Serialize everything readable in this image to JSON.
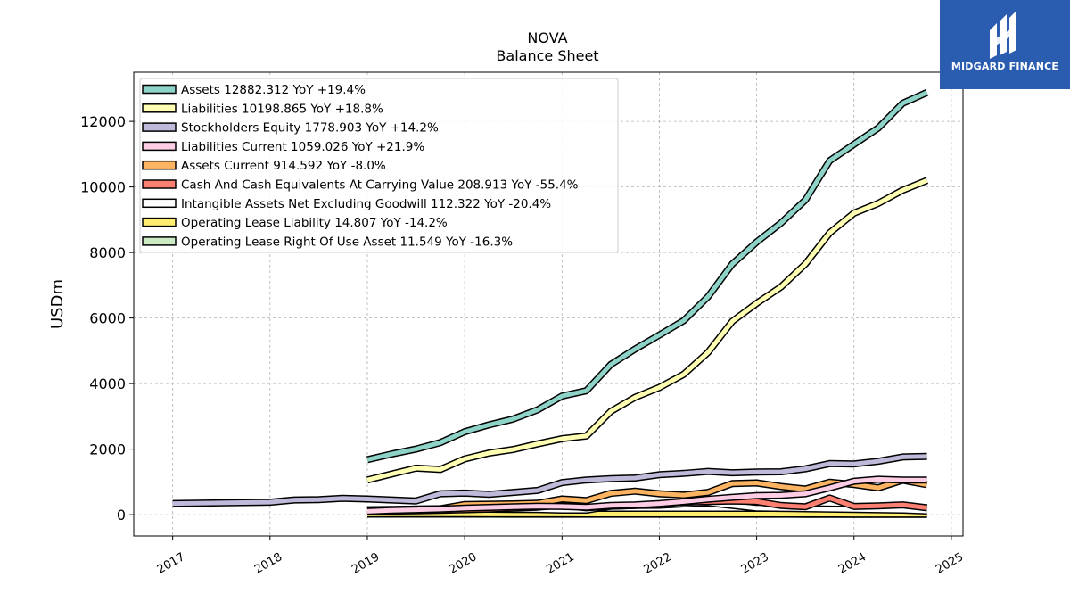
{
  "brand": {
    "name": "MIDGARD FINANCE",
    "logo_icon": "midgard-logo-icon",
    "color": "#2a5cb0"
  },
  "chart_data": {
    "type": "line",
    "title": "NOVA",
    "subtitle": "Balance  Sheet",
    "ylabel": "USDm",
    "xlabel": "",
    "xlim": [
      2016.6,
      2025.12
    ],
    "ylim": [
      -650,
      13500
    ],
    "yticks": [
      0,
      2000,
      4000,
      6000,
      8000,
      10000,
      12000
    ],
    "xticks": [
      2017,
      2018,
      2019,
      2020,
      2021,
      2022,
      2023,
      2024,
      2025
    ],
    "grid": true,
    "legend_position": "top-left",
    "series": [
      {
        "name": "Assets",
        "legend": "Assets  12882.312 YoY +19.4%",
        "color": "#8dd3c7",
        "x": [
          2019.0,
          2019.25,
          2019.5,
          2019.75,
          2020.0,
          2020.25,
          2020.5,
          2020.75,
          2021.0,
          2021.25,
          2021.5,
          2021.75,
          2022.0,
          2022.25,
          2022.5,
          2022.75,
          2023.0,
          2023.25,
          2023.5,
          2023.75,
          2024.0,
          2024.25,
          2024.5,
          2024.75
        ],
        "y": [
          1680,
          1850,
          2000,
          2200,
          2530,
          2740,
          2920,
          3200,
          3620,
          3780,
          4580,
          5050,
          5480,
          5920,
          6650,
          7650,
          8320,
          8900,
          9600,
          10800,
          11300,
          11800,
          12550,
          12882
        ]
      },
      {
        "name": "Liabilities",
        "legend": "Liabilities  10198.865 YoY +18.8%",
        "color": "#ffffb3",
        "x": [
          2019.0,
          2019.25,
          2019.5,
          2019.75,
          2020.0,
          2020.25,
          2020.5,
          2020.75,
          2021.0,
          2021.25,
          2021.5,
          2021.75,
          2022.0,
          2022.25,
          2022.5,
          2022.75,
          2023.0,
          2023.25,
          2023.5,
          2023.75,
          2024.0,
          2024.25,
          2024.5,
          2024.75
        ],
        "y": [
          1060,
          1240,
          1420,
          1380,
          1700,
          1880,
          1990,
          2160,
          2320,
          2400,
          3150,
          3580,
          3880,
          4280,
          4950,
          5900,
          6450,
          6950,
          7650,
          8600,
          9200,
          9500,
          9900,
          10199
        ]
      },
      {
        "name": "Stockholders Equity",
        "legend": "Stockholders Equity  1778.903 YoY +14.2%",
        "color": "#bebada",
        "x": [
          2017.0,
          2018.0,
          2018.25,
          2018.5,
          2018.75,
          2019.0,
          2019.25,
          2019.5,
          2019.75,
          2020.0,
          2020.25,
          2020.5,
          2020.75,
          2021.0,
          2021.25,
          2021.5,
          2021.75,
          2022.0,
          2022.25,
          2022.5,
          2022.75,
          2023.0,
          2023.25,
          2023.5,
          2023.75,
          2024.0,
          2024.25,
          2024.5,
          2024.75
        ],
        "y": [
          340,
          380,
          450,
          460,
          500,
          480,
          450,
          420,
          640,
          660,
          620,
          680,
          740,
          980,
          1060,
          1100,
          1120,
          1220,
          1260,
          1320,
          1280,
          1300,
          1310,
          1400,
          1560,
          1550,
          1630,
          1760,
          1779
        ]
      },
      {
        "name": "Liabilities Current",
        "legend": "Liabilities Current  1059.026 YoY +21.9%",
        "color": "#fccde5",
        "x": [
          2019.0,
          2019.25,
          2019.5,
          2019.75,
          2020.0,
          2020.25,
          2020.5,
          2020.75,
          2021.0,
          2021.25,
          2021.5,
          2021.75,
          2022.0,
          2022.25,
          2022.5,
          2022.75,
          2023.0,
          2023.25,
          2023.5,
          2023.75,
          2024.0,
          2024.25,
          2024.5,
          2024.75
        ],
        "y": [
          100,
          130,
          150,
          170,
          200,
          220,
          240,
          260,
          250,
          230,
          280,
          300,
          340,
          400,
          470,
          530,
          580,
          590,
          640,
          820,
          1020,
          1080,
          1060,
          1059
        ]
      },
      {
        "name": "Assets Current",
        "legend": "Assets Current  914.592 YoY -8.0%",
        "color": "#fdb462",
        "x": [
          2019.0,
          2019.25,
          2019.5,
          2019.75,
          2020.0,
          2020.25,
          2020.5,
          2020.75,
          2021.0,
          2021.25,
          2021.5,
          2021.75,
          2022.0,
          2022.25,
          2022.5,
          2022.75,
          2023.0,
          2023.25,
          2023.5,
          2023.75,
          2024.0,
          2024.25,
          2024.5,
          2024.75
        ],
        "y": [
          120,
          150,
          170,
          180,
          310,
          320,
          330,
          350,
          480,
          430,
          650,
          720,
          640,
          600,
          680,
          950,
          970,
          860,
          780,
          990,
          920,
          820,
          1050,
          915
        ]
      },
      {
        "name": "Cash And Cash Equivalents At Carrying Value",
        "legend": "Cash And Cash Equivalents At Carrying Value  208.913 YoY -55.4%",
        "color": "#fb8072",
        "x": [
          2019.0,
          2019.25,
          2019.5,
          2019.75,
          2020.0,
          2020.25,
          2020.5,
          2020.75,
          2021.0,
          2021.25,
          2021.5,
          2021.75,
          2022.0,
          2022.25,
          2022.5,
          2022.75,
          2023.0,
          2023.25,
          2023.5,
          2023.75,
          2024.0,
          2024.25,
          2024.5,
          2024.75
        ],
        "y": [
          90,
          110,
          120,
          130,
          150,
          170,
          200,
          230,
          290,
          210,
          260,
          280,
          320,
          380,
          400,
          420,
          400,
          280,
          240,
          510,
          250,
          270,
          300,
          209
        ]
      },
      {
        "name": "Intangible Assets Net Excluding Goodwill",
        "legend": "Intangible Assets Net Excluding Goodwill  112.322 YoY -20.4%",
        "color": "#ffffff",
        "x": [
          2019.0,
          2019.25,
          2019.5,
          2019.75,
          2020.0,
          2020.25,
          2020.5,
          2020.75,
          2021.0,
          2021.25,
          2021.5,
          2021.75,
          2022.0,
          2022.25,
          2022.5,
          2022.75,
          2023.0,
          2023.25,
          2023.5,
          2023.75,
          2024.0,
          2024.25,
          2024.5,
          2024.75
        ],
        "y": [
          150,
          160,
          170,
          180,
          170,
          165,
          160,
          155,
          140,
          140,
          260,
          280,
          290,
          330,
          360,
          280,
          200,
          190,
          180,
          170,
          160,
          150,
          140,
          112
        ]
      },
      {
        "name": "Operating Lease Liability",
        "legend": "Operating Lease Liability  14.807 YoY -14.2%",
        "color": "#ffed6f",
        "x": [
          2019.0,
          2019.25,
          2019.5,
          2019.75,
          2020.0,
          2020.25,
          2020.5,
          2020.75,
          2021.0,
          2021.25,
          2021.5,
          2021.75,
          2022.0,
          2022.25,
          2022.5,
          2022.75,
          2023.0,
          2023.25,
          2023.5,
          2023.75,
          2024.0,
          2024.25,
          2024.5,
          2024.75
        ],
        "y": [
          20,
          21,
          22,
          22,
          21,
          20,
          20,
          19,
          19,
          18,
          18,
          18,
          17,
          17,
          17,
          17,
          17,
          16,
          16,
          16,
          15,
          15,
          15,
          14.8
        ]
      },
      {
        "name": "Operating Lease Right Of Use Asset",
        "legend": "Operating Lease Right Of Use Asset  11.549 YoY -16.3%",
        "color": "#ccebc5",
        "x": [
          2019.0,
          2019.25,
          2019.5,
          2019.75,
          2020.0,
          2020.25,
          2020.5,
          2020.75,
          2021.0,
          2021.25,
          2021.5,
          2021.75,
          2022.0,
          2022.25,
          2022.5,
          2022.75,
          2023.0,
          2023.25,
          2023.5,
          2023.75,
          2024.0,
          2024.25,
          2024.5,
          2024.75
        ],
        "y": [
          16,
          17,
          17,
          17,
          16,
          16,
          15,
          15,
          15,
          14,
          14,
          14,
          14,
          13,
          13,
          13,
          13,
          13,
          12,
          12,
          12,
          12,
          12,
          11.5
        ]
      }
    ]
  }
}
